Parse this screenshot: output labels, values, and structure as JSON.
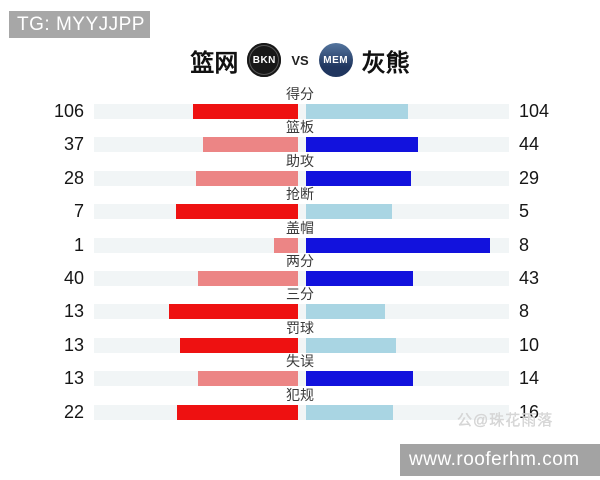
{
  "badge": {
    "text": "TG: MYYJJPP"
  },
  "header": {
    "left_team": "篮网",
    "left_logo_abbr": "BKN",
    "vs_label": "VS",
    "right_logo_abbr": "MEM",
    "right_team": "灰熊"
  },
  "colors": {
    "left_win": "#ee1111",
    "left_lose": "#ec8585",
    "right_win": "#1212dd",
    "right_lose": "#a9d5e3",
    "track": "#f1f5f6",
    "badge_bg": "#a7a7a7",
    "footer_bg": "#a3a3a3"
  },
  "chart_data": {
    "type": "bar",
    "orientation": "horizontal-paired-diverging-from-center",
    "title": "篮网 VS 灰熊",
    "categories": [
      "得分",
      "篮板",
      "助攻",
      "抢断",
      "盖帽",
      "两分",
      "三分",
      "罚球",
      "失误",
      "犯规"
    ],
    "series": [
      {
        "name": "篮网",
        "side": "left",
        "values": [
          106,
          37,
          28,
          7,
          1,
          40,
          13,
          13,
          13,
          22
        ]
      },
      {
        "name": "灰熊",
        "side": "right",
        "values": [
          104,
          44,
          29,
          5,
          8,
          43,
          8,
          10,
          14,
          16
        ]
      }
    ],
    "bar_scaling": "bar length = value / (left + right) of the half-track width, growing outward from center gap",
    "color_rule": "row winner gets saturated color (red left / blue right), loser gets pale tint",
    "legend_position": "none",
    "grid": false
  },
  "watermark": {
    "text": "公@珠花雨落"
  },
  "footer": {
    "url": "www.rooferhm.com"
  }
}
